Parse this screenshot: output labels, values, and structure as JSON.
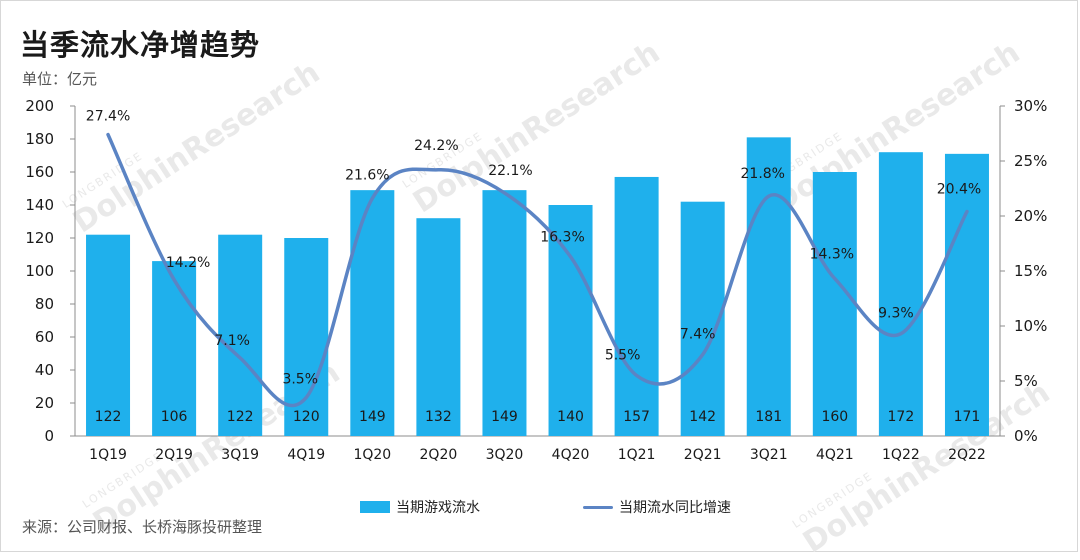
{
  "title": "当季流水净增趋势",
  "unit_label": "单位：亿元",
  "source": "来源：公司财报、长桥海豚投研整理",
  "watermark": {
    "brand": "DolphinResearch",
    "sub": "LONGBRIDGE"
  },
  "colors": {
    "bar": "#1fb0ec",
    "line": "#5b84c4",
    "axis": "#8c8c8c",
    "text": "#1a1a1a"
  },
  "chart_data": {
    "type": "bar",
    "categories": [
      "1Q19",
      "2Q19",
      "3Q19",
      "4Q19",
      "1Q20",
      "2Q20",
      "3Q20",
      "4Q20",
      "1Q21",
      "2Q21",
      "3Q21",
      "4Q21",
      "1Q22",
      "2Q22"
    ],
    "series": [
      {
        "name": "当期游戏流水",
        "type": "bar",
        "axis": "left",
        "values": [
          122,
          106,
          122,
          120,
          149,
          132,
          149,
          140,
          157,
          142,
          181,
          160,
          172,
          171
        ],
        "labels": [
          "122",
          "106",
          "122",
          "120",
          "149",
          "132",
          "149",
          "140",
          "157",
          "142",
          "181",
          "160",
          "172",
          "171"
        ]
      },
      {
        "name": "当期流水同比增速",
        "type": "line",
        "axis": "right",
        "smooth": true,
        "values": [
          27.4,
          14.2,
          7.1,
          3.5,
          21.6,
          24.2,
          22.1,
          16.3,
          5.5,
          7.4,
          21.8,
          14.3,
          9.3,
          20.4
        ],
        "labels": [
          "27.4%",
          "14.2%",
          "7.1%",
          "3.5%",
          "21.6%",
          "24.2%",
          "22.1%",
          "16.3%",
          "5.5%",
          "7.4%",
          "21.8%",
          "14.3%",
          "9.3%",
          "20.4%"
        ]
      }
    ],
    "y_left": {
      "min": 0,
      "max": 200,
      "ticks": [
        "0",
        "20",
        "40",
        "60",
        "80",
        "100",
        "120",
        "140",
        "160",
        "180",
        "200"
      ]
    },
    "y_right": {
      "min": 0,
      "max": 30,
      "ticks": [
        "0%",
        "5%",
        "10%",
        "15%",
        "20%",
        "25%",
        "30%"
      ]
    },
    "grid": false,
    "legend_position": "bottom"
  }
}
